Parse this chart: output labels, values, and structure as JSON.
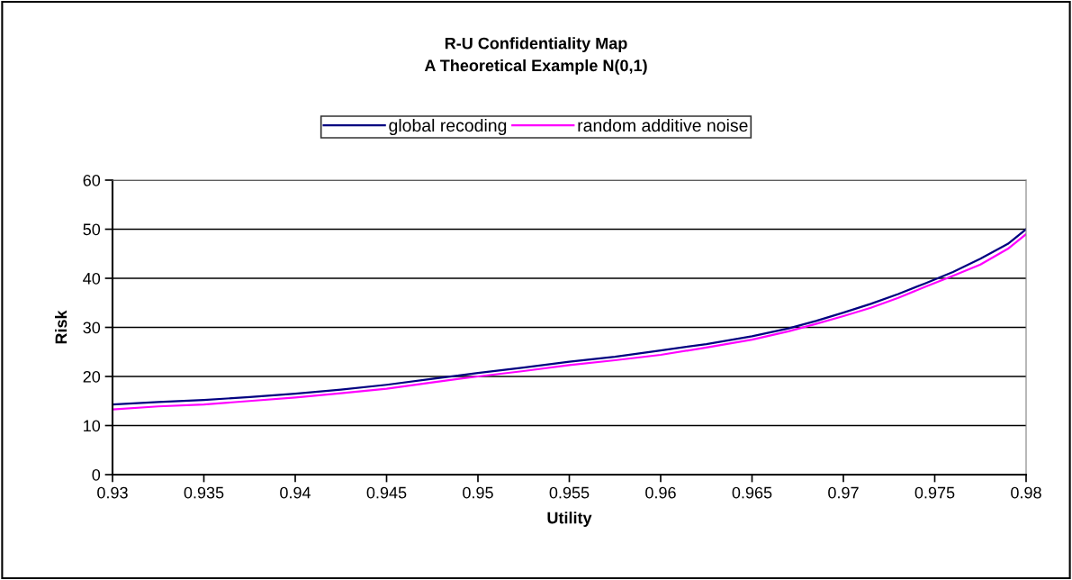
{
  "chart_data": {
    "type": "line",
    "title": "R-U Confidentiality Map\nA Theoretical Example N(0,1)",
    "xlabel": "Utility",
    "ylabel": "Risk",
    "series": [
      {
        "name": "global recoding",
        "color": "#000080",
        "x": [
          0.93,
          0.9325,
          0.935,
          0.9375,
          0.94,
          0.9425,
          0.945,
          0.9475,
          0.95,
          0.9525,
          0.955,
          0.9575,
          0.96,
          0.9625,
          0.965,
          0.967,
          0.9685,
          0.97,
          0.9715,
          0.973,
          0.9745,
          0.976,
          0.9775,
          0.979,
          0.98
        ],
        "values": [
          14.3,
          14.8,
          15.2,
          15.8,
          16.5,
          17.3,
          18.3,
          19.5,
          20.7,
          21.8,
          23.0,
          24.0,
          25.3,
          26.6,
          28.2,
          29.8,
          31.3,
          33.0,
          34.8,
          36.8,
          39.0,
          41.3,
          44.0,
          47.0,
          50.0
        ]
      },
      {
        "name": "random additive noise",
        "color": "#ff00ff",
        "x": [
          0.93,
          0.9325,
          0.935,
          0.9375,
          0.94,
          0.9425,
          0.945,
          0.9475,
          0.95,
          0.9525,
          0.955,
          0.9575,
          0.96,
          0.9625,
          0.965,
          0.967,
          0.9685,
          0.97,
          0.9715,
          0.973,
          0.9745,
          0.976,
          0.9775,
          0.979,
          0.98
        ],
        "values": [
          13.3,
          13.9,
          14.3,
          15.0,
          15.7,
          16.6,
          17.5,
          18.8,
          20.0,
          21.1,
          22.3,
          23.3,
          24.4,
          25.9,
          27.5,
          29.2,
          30.7,
          32.3,
          34.0,
          36.0,
          38.3,
          40.5,
          42.8,
          46.0,
          49.0
        ]
      }
    ],
    "xlim": [
      0.93,
      0.98
    ],
    "xticks": [
      0.93,
      0.935,
      0.94,
      0.945,
      0.95,
      0.955,
      0.96,
      0.965,
      0.97,
      0.975,
      0.98
    ],
    "ylim": [
      0,
      60
    ],
    "yticks": [
      0,
      10,
      20,
      30,
      40,
      50,
      60
    ],
    "grid": "y",
    "legend": "top",
    "marker": "none",
    "line_style": "solid"
  }
}
